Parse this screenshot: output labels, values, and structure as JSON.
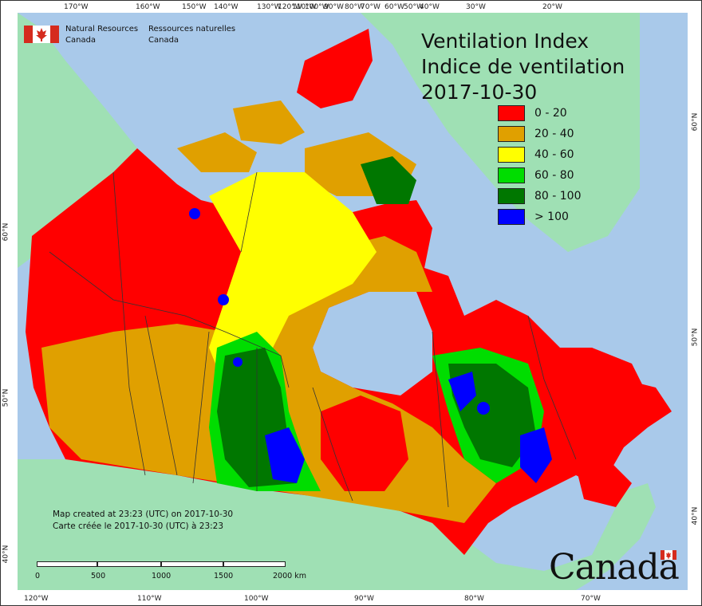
{
  "agency": {
    "name_en_line1": "Natural Resources",
    "name_en_line2": "Canada",
    "name_fr_line1": "Ressources naturelles",
    "name_fr_line2": "Canada"
  },
  "title": {
    "line1": "Ventilation Index",
    "line2": "Indice de ventilation",
    "date": "2017-10-30"
  },
  "legend": [
    {
      "label": "0 - 20",
      "color": "#ff0000"
    },
    {
      "label": "20 - 40",
      "color": "#e0a000"
    },
    {
      "label": "40 - 60",
      "color": "#ffff00"
    },
    {
      "label": "60 - 80",
      "color": "#00dd00"
    },
    {
      "label": "80 - 100",
      "color": "#007700"
    },
    {
      "label": "> 100",
      "color": "#0000ff"
    }
  ],
  "top_ticks": [
    "170°W",
    "160°W",
    "150°W",
    "140°W",
    "130°W",
    "120°W",
    "110°W",
    "100°W",
    "90°W",
    "80°W",
    "70°W",
    "60°W",
    "50°W",
    "40°W",
    "30°W",
    "20°W"
  ],
  "bottom_ticks": [
    "120°W",
    "110°W",
    "100°W",
    "90°W",
    "80°W",
    "70°W"
  ],
  "left_ticks": [
    "60°N",
    "50°N",
    "40°N"
  ],
  "right_ticks": [
    "60°N",
    "50°N",
    "40°N"
  ],
  "created": {
    "line_en": "Map created at 23:23 (UTC) on 2017-10-30",
    "line_fr": "Carte créée le 2017-10-30 (UTC) à 23:23"
  },
  "scale": {
    "labels": [
      "0",
      "500",
      "1000",
      "1500",
      "2000 km"
    ]
  },
  "wordmark": "Canada",
  "colors": {
    "ocean": "#a9c9ea",
    "land": "#9fe0b4",
    "border": "#333333"
  }
}
